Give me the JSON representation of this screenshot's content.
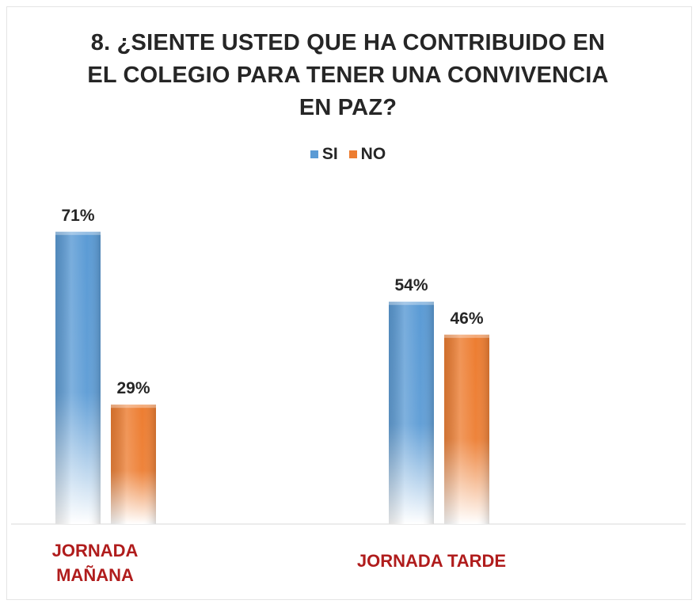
{
  "title_lines": [
    "8. ¿SIENTE USTED QUE HA CONTRIBUIDO EN",
    "EL COLEGIO PARA TENER UNA CONVIVENCIA",
    "EN PAZ?"
  ],
  "colors": {
    "si": "#5b9bd5",
    "no": "#ed7d31",
    "category_label": "#b01c1c",
    "title": "#262626"
  },
  "chart_data": {
    "type": "bar",
    "title": "8. ¿SIENTE USTED QUE HA CONTRIBUIDO EN EL COLEGIO PARA TENER UNA CONVIVENCIA EN PAZ?",
    "categories": [
      "JORNADA MAÑANA",
      "JORNADA TARDE"
    ],
    "category_lines": [
      [
        "JORNADA",
        "MAÑANA"
      ],
      [
        "JORNADA TARDE"
      ]
    ],
    "series": [
      {
        "name": "SI",
        "values": [
          71,
          54
        ],
        "labels": [
          "71%",
          "54%"
        ]
      },
      {
        "name": "NO",
        "values": [
          29,
          46
        ],
        "labels": [
          "29%",
          "46%"
        ]
      }
    ],
    "unit": "%",
    "ylim": [
      0,
      100
    ],
    "grid": false,
    "legend_position": "top-center"
  }
}
